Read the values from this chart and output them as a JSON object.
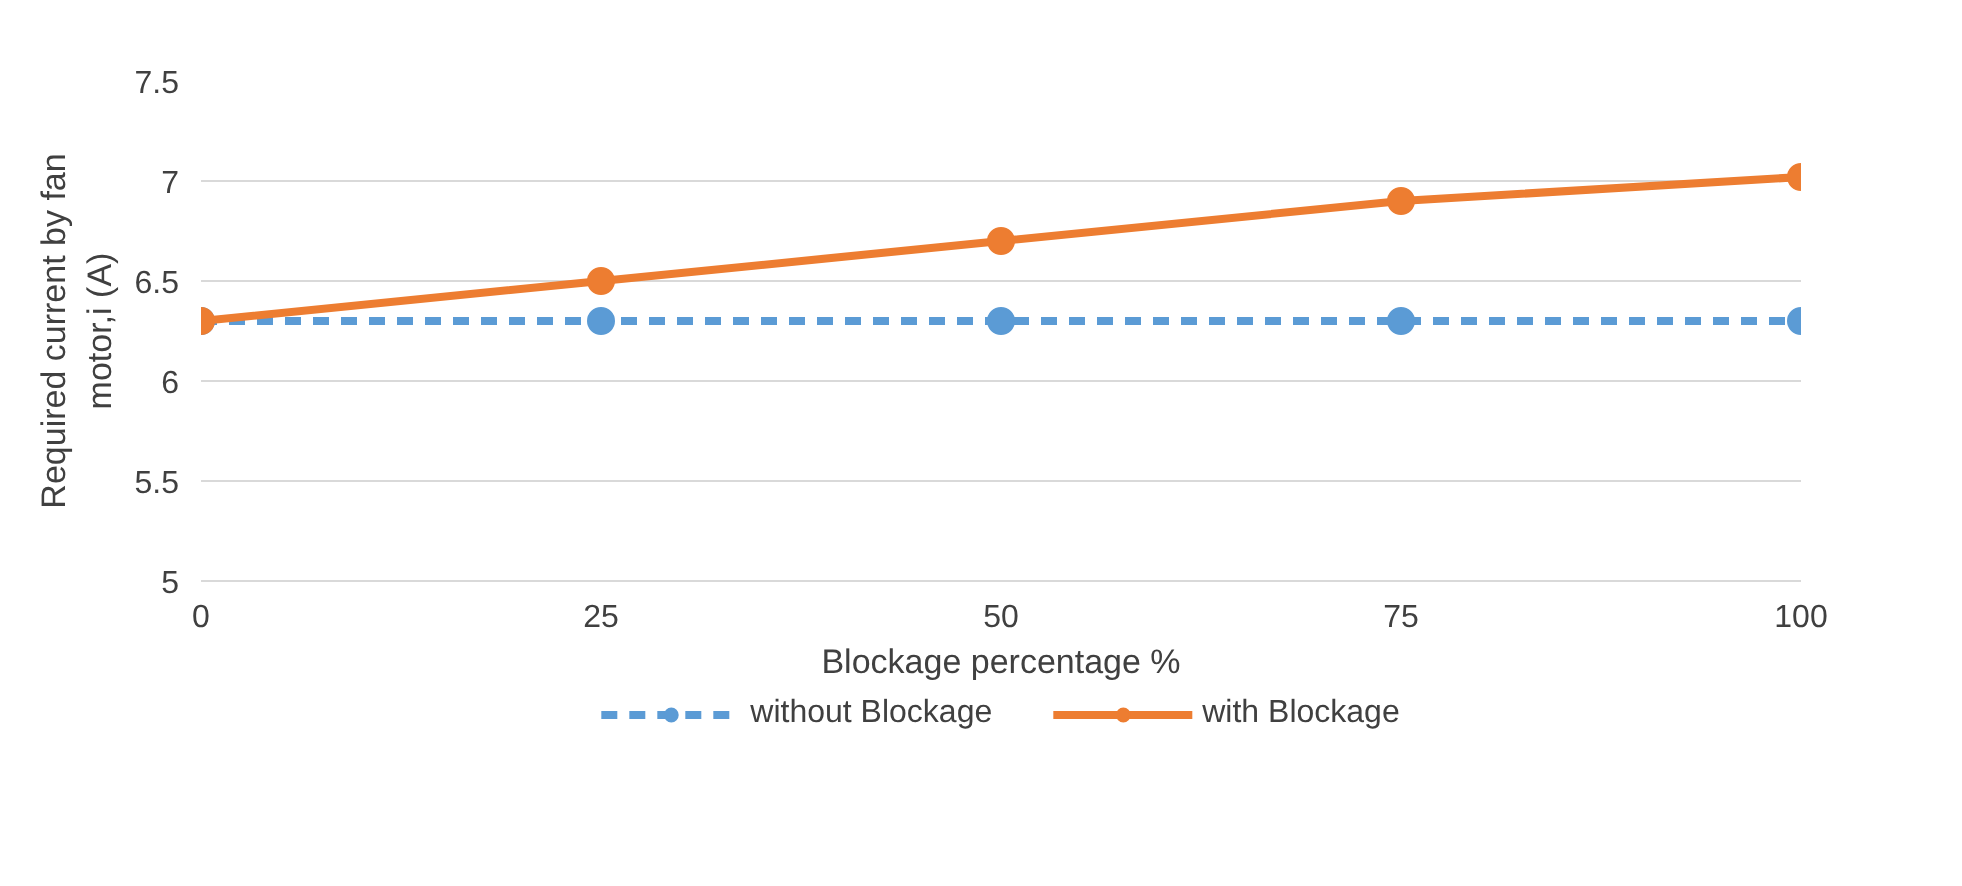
{
  "chart_data": {
    "type": "line",
    "xlabel": "Blockage percentage %",
    "ylabel": "Required current by fan motor,i (A)",
    "x": [
      0,
      25,
      50,
      75,
      100
    ],
    "series": [
      {
        "name": "without Blockage",
        "color": "#5b9bd5",
        "values": [
          6.3,
          6.3,
          6.3,
          6.3,
          6.3
        ],
        "line_style": "dashed"
      },
      {
        "name": "with Blockage",
        "color": "#ed7d31",
        "values": [
          6.3,
          6.5,
          6.7,
          6.9,
          7.02
        ],
        "line_style": "solid"
      }
    ],
    "xlim": [
      0,
      100
    ],
    "xticks": [
      0,
      25,
      50,
      75,
      100
    ],
    "ylim": [
      5,
      7.5
    ],
    "yticks": [
      5,
      5.5,
      6,
      6.5,
      7,
      7.5
    ],
    "grid": "y",
    "legend": "bottom",
    "marker": "circle"
  }
}
